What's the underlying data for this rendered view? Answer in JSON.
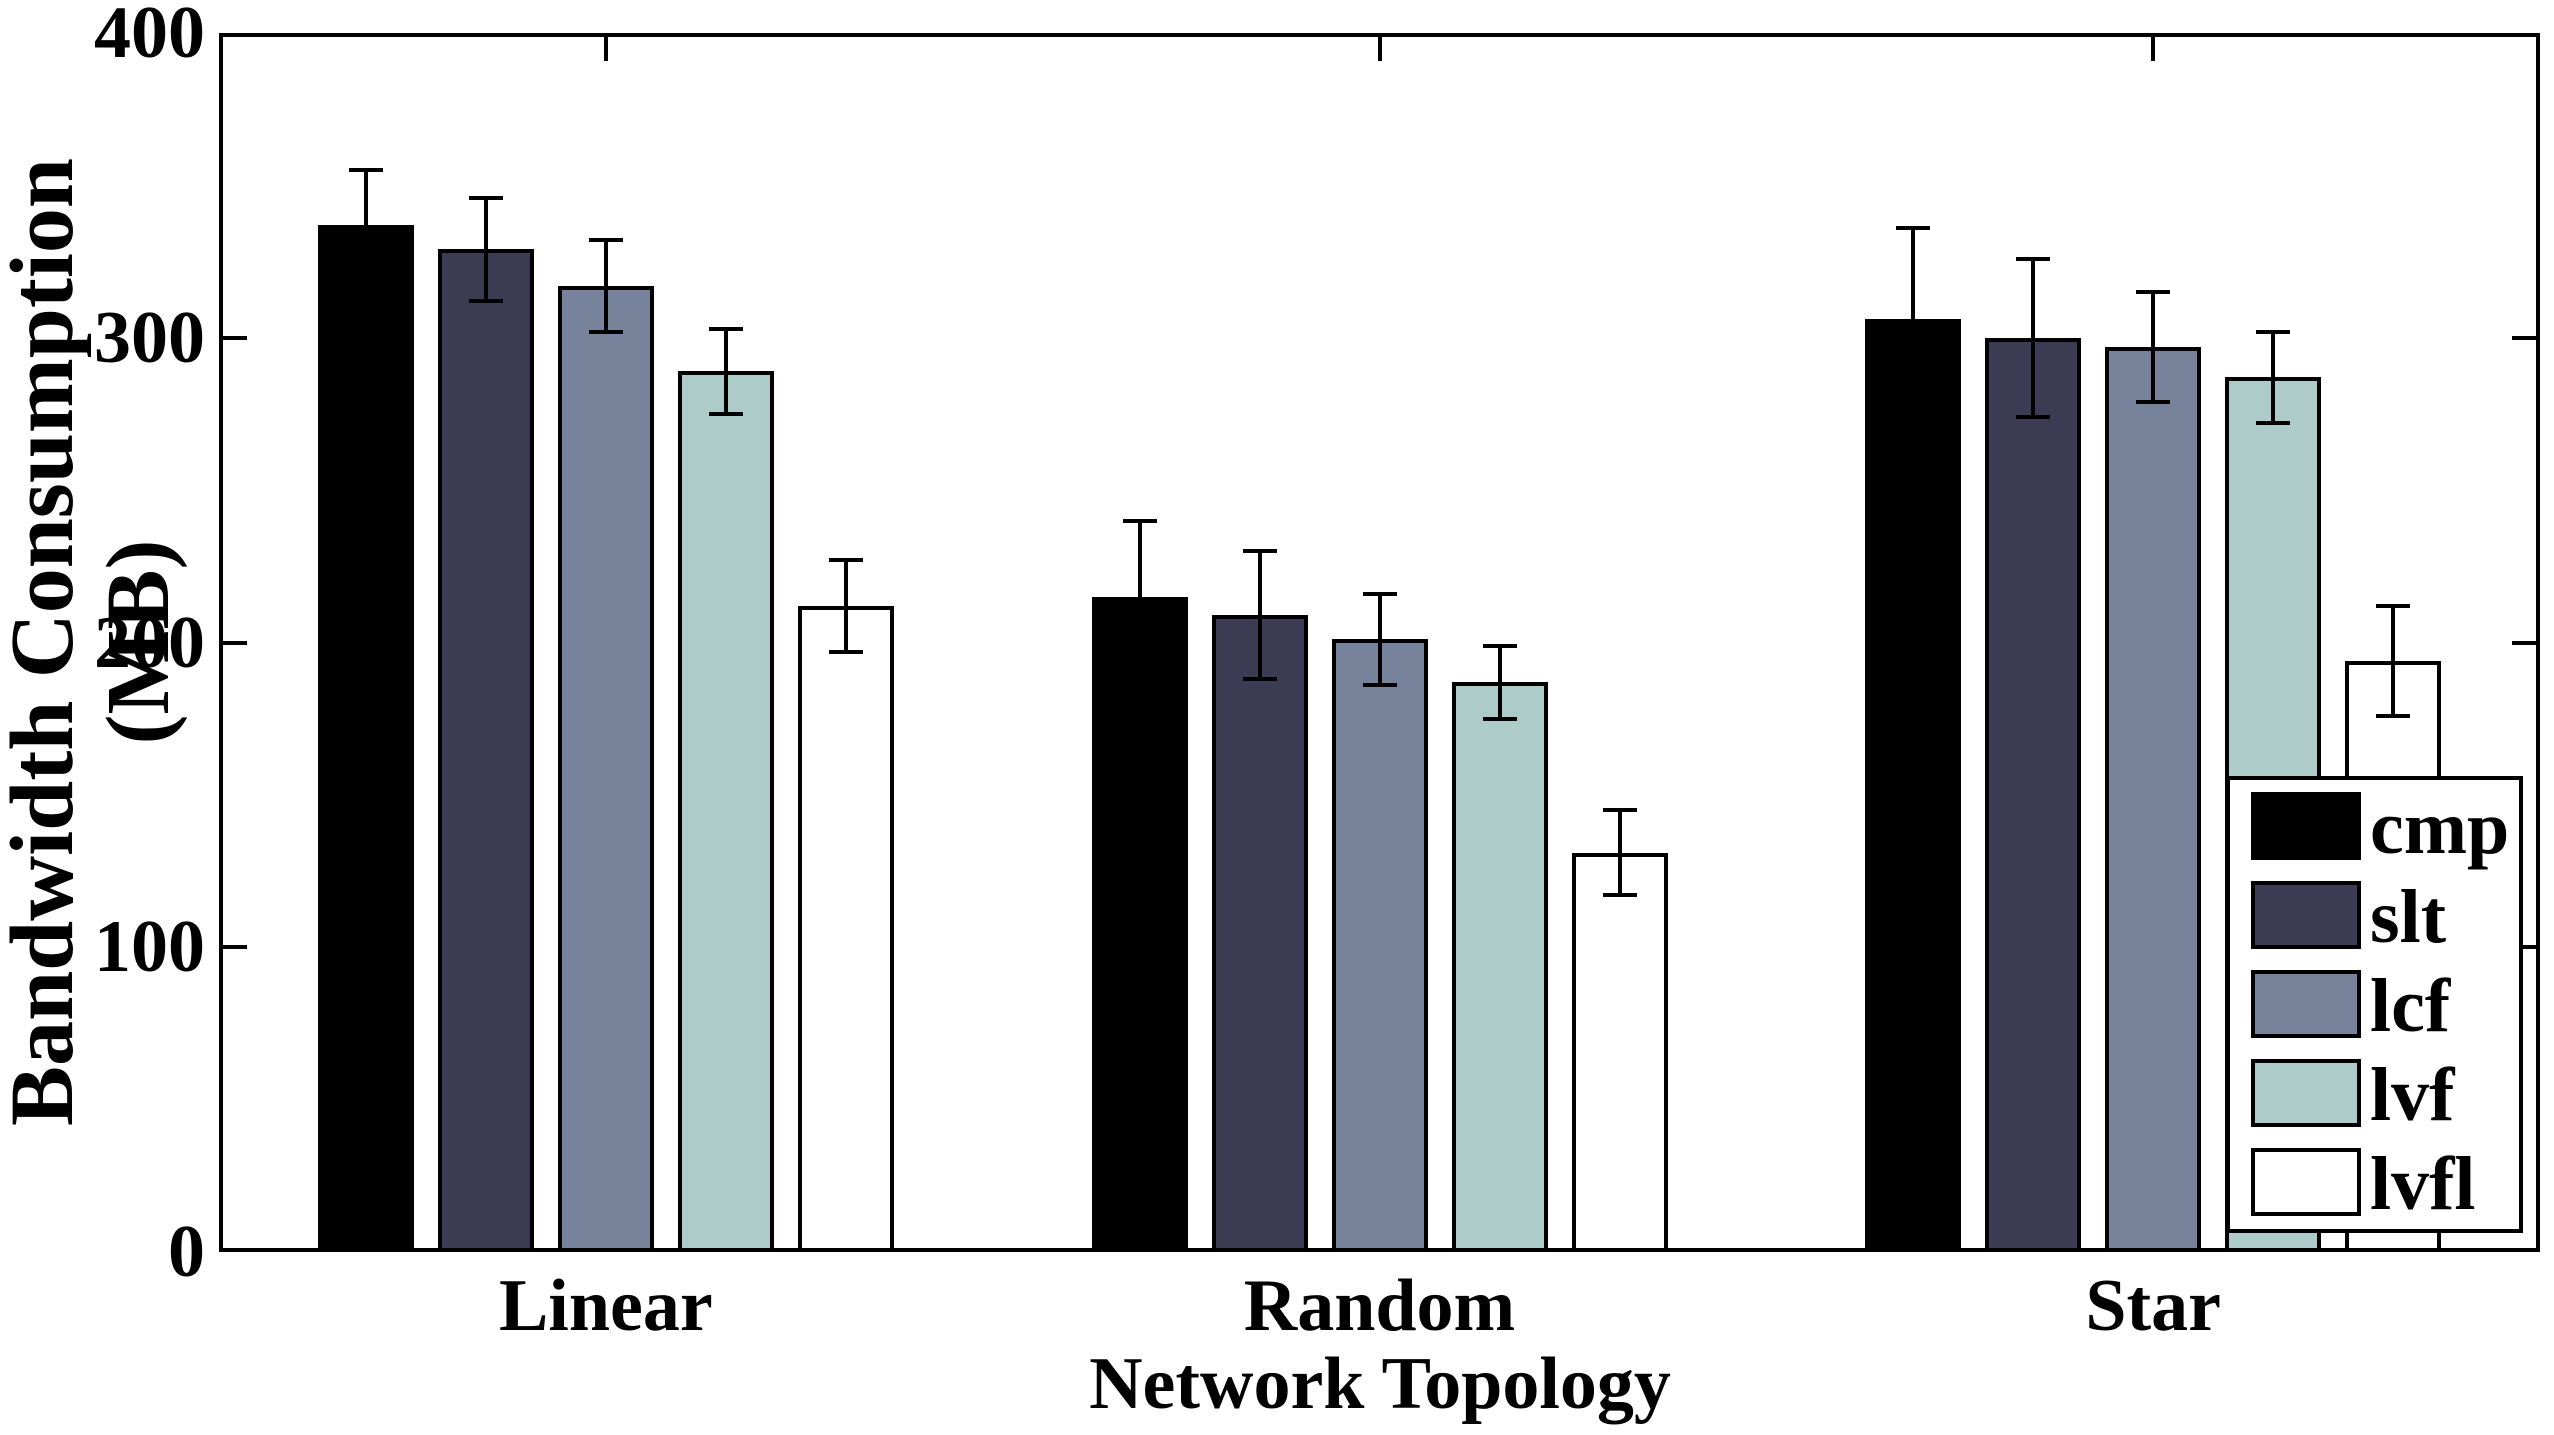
{
  "chart_data": {
    "type": "bar",
    "title": "",
    "xlabel": "Network Topology",
    "ylabel": "Bandwidth Consumption (MB)",
    "categories": [
      "Linear",
      "Random",
      "Star"
    ],
    "y_ticks": [
      0,
      100,
      200,
      300,
      400
    ],
    "ylim": [
      0,
      400
    ],
    "grid": false,
    "legend_position": "inside lower-right",
    "bar_edge_color": "#000000",
    "error_bar_color": "#000000",
    "series": [
      {
        "name": "cmp",
        "color": "#000000",
        "values": [
          337,
          215,
          306
        ],
        "errors": [
          18,
          25,
          30
        ]
      },
      {
        "name": "slt",
        "color": "#3b3b54",
        "values": [
          329,
          209,
          300
        ],
        "errors": [
          17,
          21,
          26
        ]
      },
      {
        "name": "lcf",
        "color": "#76839b",
        "values": [
          317,
          201,
          297
        ],
        "errors": [
          15,
          15,
          18
        ]
      },
      {
        "name": "lvf",
        "color": "#adcbc9",
        "values": [
          289,
          187,
          287
        ],
        "errors": [
          14,
          12,
          15
        ]
      },
      {
        "name": "lvfl",
        "color": "#ffffff",
        "values": [
          212,
          131,
          194
        ],
        "errors": [
          15,
          14,
          18
        ]
      }
    ]
  }
}
